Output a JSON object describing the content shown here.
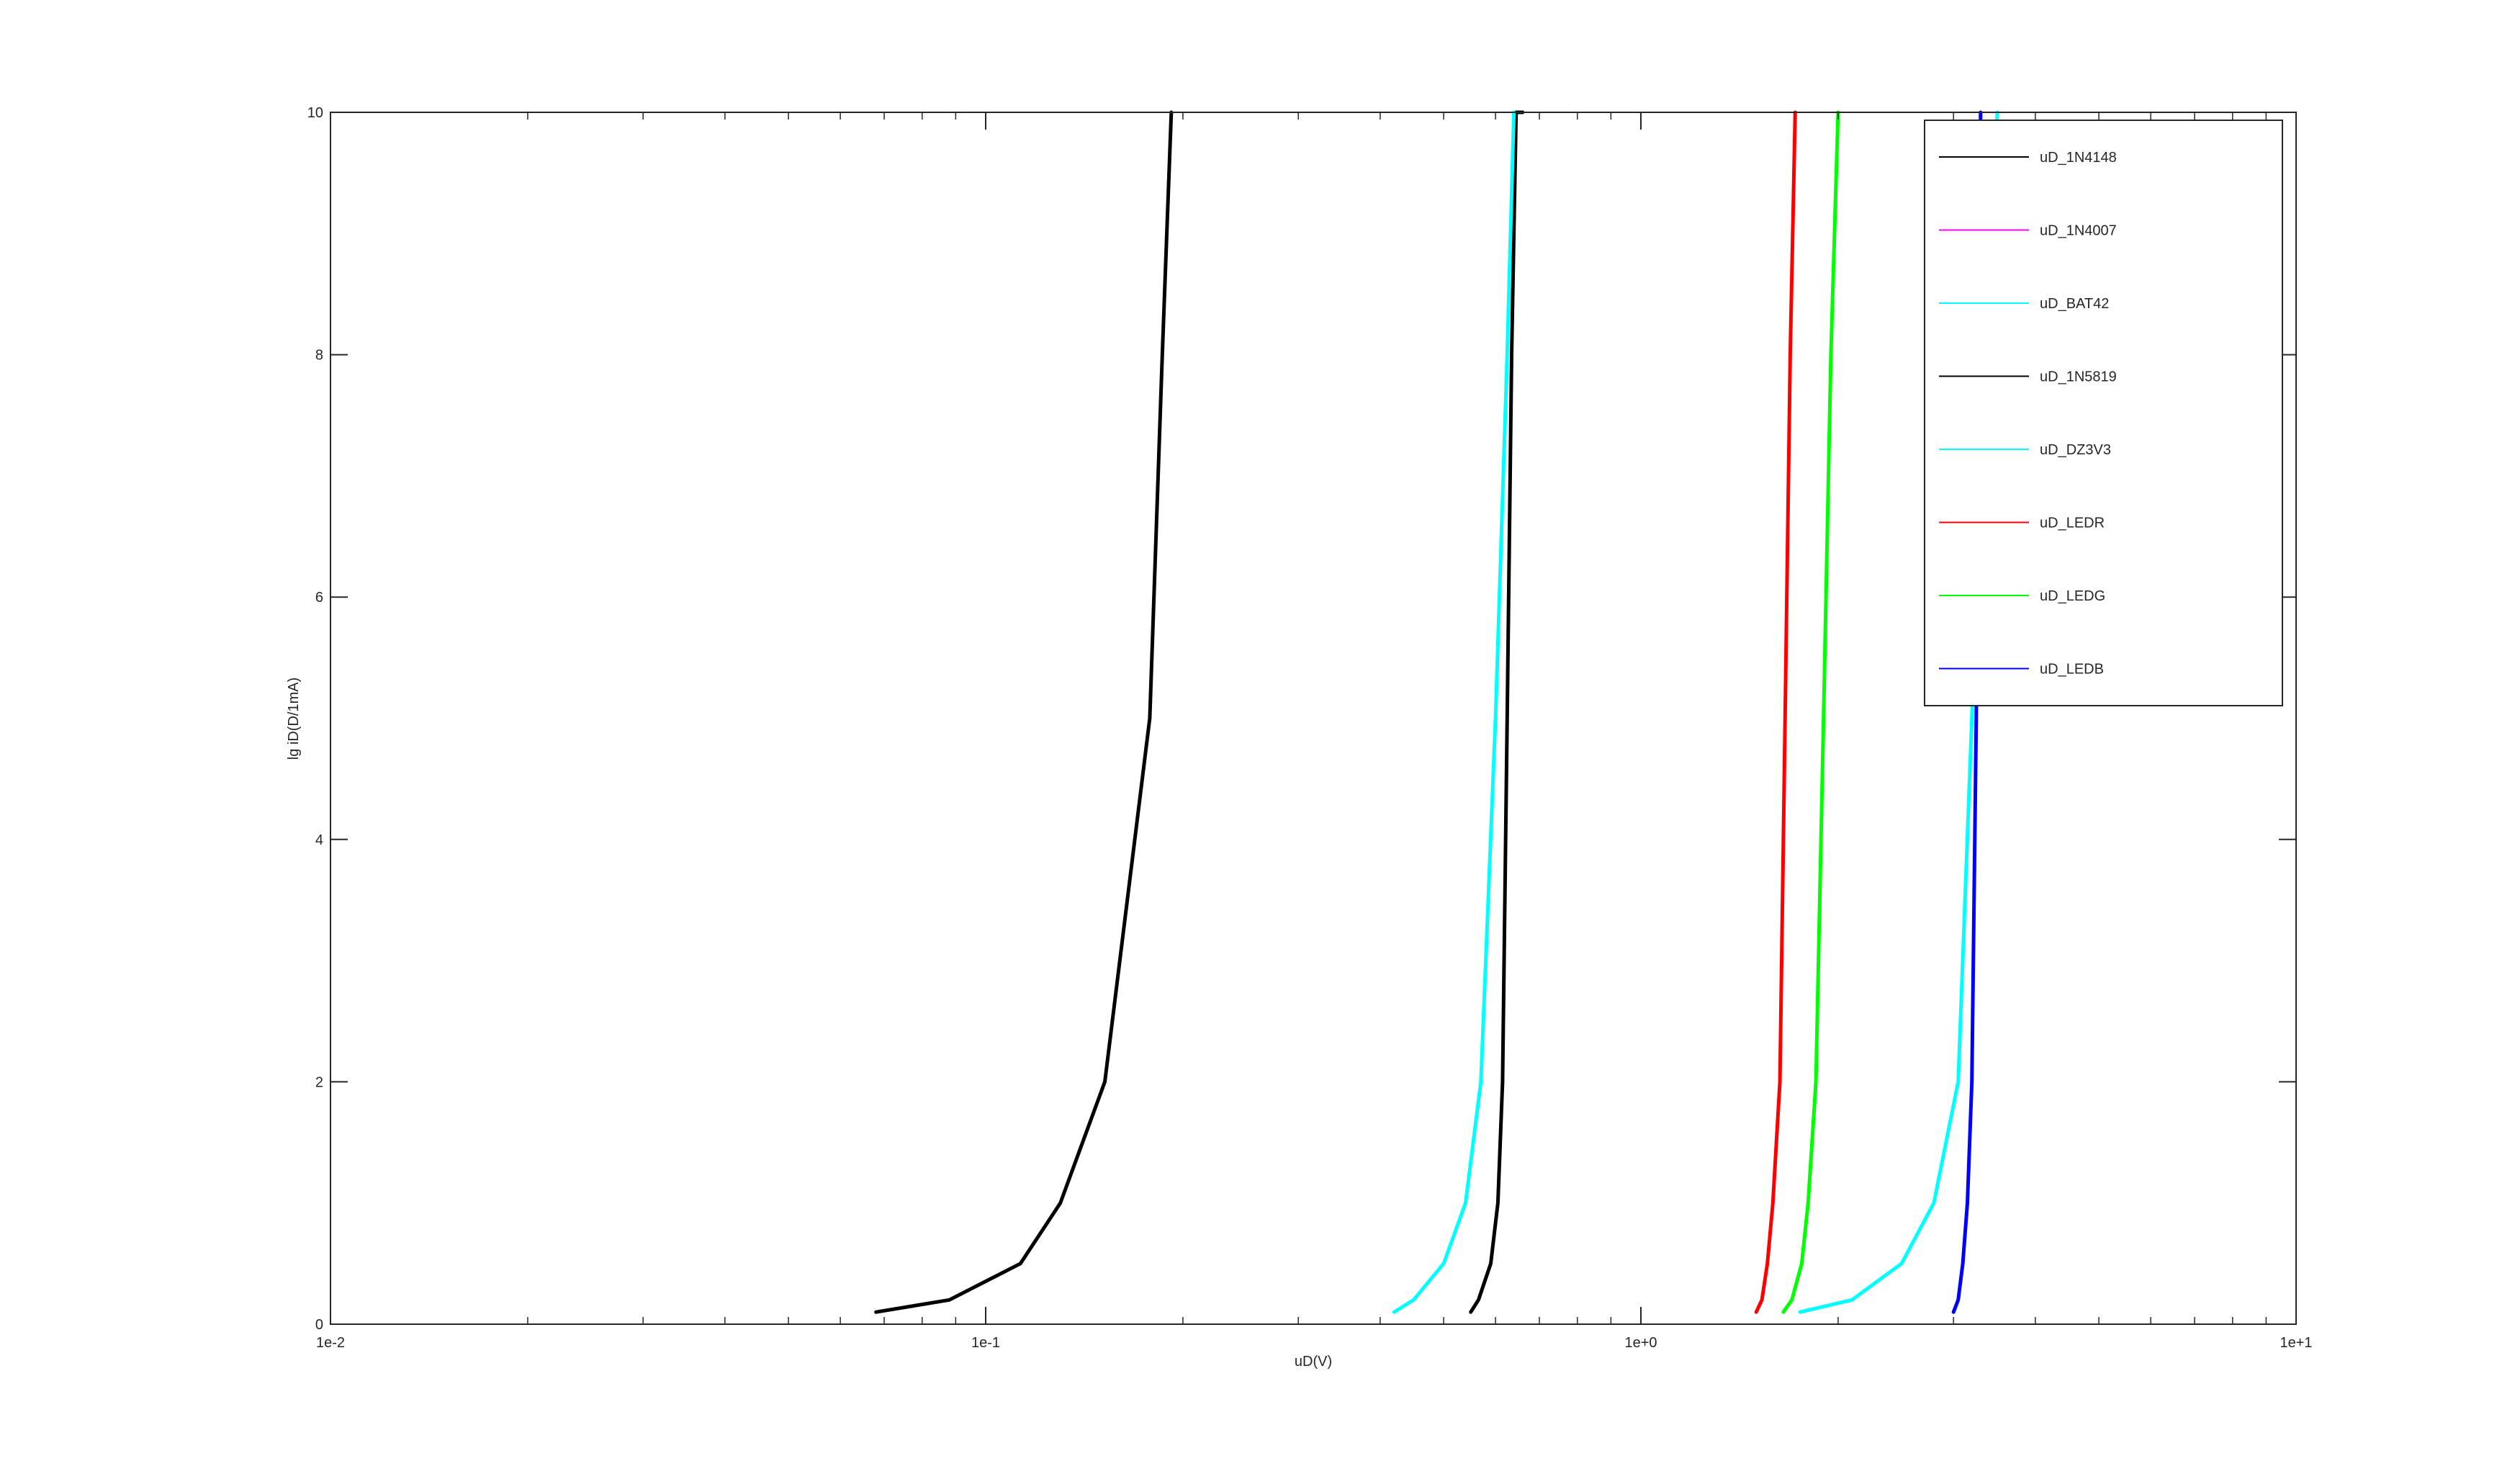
{
  "chart_data": {
    "type": "line",
    "title": "",
    "xlabel": "uD(V)",
    "ylabel": "lg iD(D/1mA)",
    "x_scale": "log",
    "xlim": [
      0.01,
      10
    ],
    "ylim": [
      0,
      10
    ],
    "x_ticks": [
      {
        "value": 0.01,
        "label": "1e-2"
      },
      {
        "value": 0.1,
        "label": "1e-1"
      },
      {
        "value": 1,
        "label": "1e+0"
      },
      {
        "value": 10,
        "label": "1e+1"
      }
    ],
    "y_ticks": [
      {
        "value": 0,
        "label": "0"
      },
      {
        "value": 2,
        "label": "2"
      },
      {
        "value": 4,
        "label": "4"
      },
      {
        "value": 6,
        "label": "6"
      },
      {
        "value": 8,
        "label": "8"
      },
      {
        "value": 10,
        "label": "10"
      }
    ],
    "grid": false,
    "legend_position": "top-right",
    "series": [
      {
        "name": "uD_1N4148",
        "color": "#000000",
        "x": [
          0.55,
          0.565,
          0.59,
          0.605,
          0.615,
          0.625,
          0.635,
          0.645,
          0.66
        ],
        "y": [
          0.1,
          0.2,
          0.5,
          1,
          2,
          5,
          8,
          10,
          10
        ]
      },
      {
        "name": "uD_1N4007",
        "color": "#ff00ff",
        "x": [],
        "y": []
      },
      {
        "name": "uD_BAT42",
        "color": "#00ffff",
        "x": [
          0.42,
          0.45,
          0.5,
          0.54,
          0.57,
          0.6,
          0.625,
          0.64
        ],
        "y": [
          0.1,
          0.2,
          0.5,
          1,
          2,
          5,
          8,
          10
        ]
      },
      {
        "name": "uD_1N5819",
        "color": "#000000",
        "x": [
          0.068,
          0.088,
          0.113,
          0.13,
          0.152,
          0.178,
          0.186,
          0.192
        ],
        "y": [
          0.1,
          0.2,
          0.5,
          1,
          2,
          5,
          8,
          10
        ]
      },
      {
        "name": "uD_DZ3V3",
        "color": "#00ffff",
        "x": [
          1.75,
          2.1,
          2.5,
          2.8,
          3.05,
          3.2,
          3.35,
          3.5
        ],
        "y": [
          0.1,
          0.2,
          0.5,
          1,
          2,
          5,
          8,
          10
        ]
      },
      {
        "name": "uD_LEDR",
        "color": "#ff0000",
        "x": [
          1.5,
          1.53,
          1.56,
          1.59,
          1.63,
          1.66,
          1.69,
          1.72
        ],
        "y": [
          0.1,
          0.2,
          0.5,
          1,
          2,
          5,
          8,
          10
        ]
      },
      {
        "name": "uD_LEDG",
        "color": "#00ff00",
        "x": [
          1.65,
          1.7,
          1.76,
          1.8,
          1.85,
          1.9,
          1.95,
          2.0
        ],
        "y": [
          0.1,
          0.2,
          0.5,
          1,
          2,
          5,
          8,
          10
        ]
      },
      {
        "name": "uD_LEDB",
        "color": "#0000ff",
        "x": [
          3.0,
          3.05,
          3.1,
          3.15,
          3.2,
          3.25,
          3.28,
          3.3
        ],
        "y": [
          0.1,
          0.2,
          0.5,
          1,
          2,
          5,
          8,
          10
        ]
      }
    ]
  }
}
